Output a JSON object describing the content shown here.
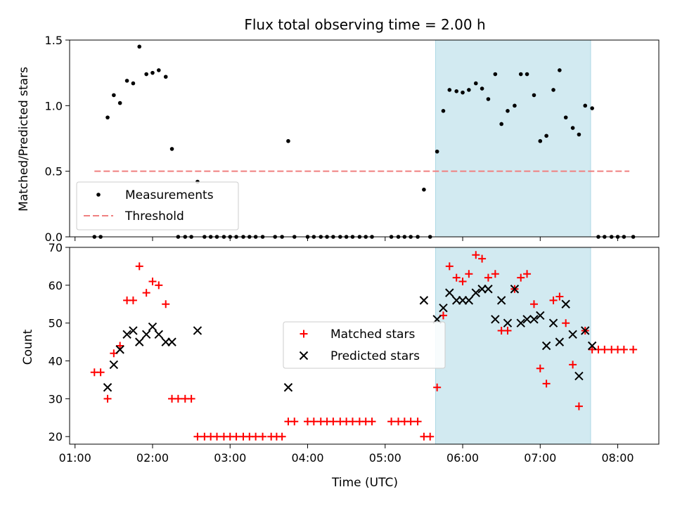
{
  "chart_data": [
    {
      "type": "scatter",
      "title": "Flux total observing time = 2.00 h",
      "ylabel": "Matched/Predicted stars",
      "xlabel": "",
      "xlim": [
        0.93,
        8.53
      ],
      "ylim": [
        0,
        1.5
      ],
      "yticks": [
        0.0,
        0.5,
        1.0,
        1.5
      ],
      "ytick_labels": [
        "0.0",
        "0.5",
        "1.0",
        "1.5"
      ],
      "shaded_region": [
        5.65,
        7.65
      ],
      "shade_color": "#add8e6",
      "threshold": {
        "name": "Threshold",
        "value": 0.5,
        "x_range": [
          1.25,
          8.15
        ],
        "color": "#f08080"
      },
      "legend": {
        "position": "lower-left",
        "entries": [
          "Measurements",
          "Threshold"
        ]
      },
      "series": [
        {
          "name": "Measurements",
          "marker": "dot",
          "color": "#000000",
          "points": [
            [
              1.25,
              0
            ],
            [
              1.33,
              0
            ],
            [
              1.42,
              0.91
            ],
            [
              1.5,
              1.08
            ],
            [
              1.58,
              1.02
            ],
            [
              1.67,
              1.19
            ],
            [
              1.75,
              1.17
            ],
            [
              1.83,
              1.45
            ],
            [
              1.92,
              1.24
            ],
            [
              2.0,
              1.25
            ],
            [
              2.08,
              1.27
            ],
            [
              2.17,
              1.22
            ],
            [
              2.25,
              0.67
            ],
            [
              2.33,
              0
            ],
            [
              2.42,
              0
            ],
            [
              2.5,
              0
            ],
            [
              2.58,
              0.42
            ],
            [
              2.67,
              0
            ],
            [
              2.75,
              0
            ],
            [
              2.83,
              0
            ],
            [
              2.92,
              0
            ],
            [
              3.0,
              0
            ],
            [
              3.08,
              0
            ],
            [
              3.17,
              0
            ],
            [
              3.25,
              0
            ],
            [
              3.33,
              0
            ],
            [
              3.42,
              0
            ],
            [
              3.58,
              0
            ],
            [
              3.67,
              0
            ],
            [
              3.75,
              0.73
            ],
            [
              3.83,
              0
            ],
            [
              4.0,
              0
            ],
            [
              4.08,
              0
            ],
            [
              4.17,
              0
            ],
            [
              4.25,
              0
            ],
            [
              4.33,
              0
            ],
            [
              4.42,
              0
            ],
            [
              4.5,
              0
            ],
            [
              4.58,
              0
            ],
            [
              4.67,
              0
            ],
            [
              4.75,
              0
            ],
            [
              4.83,
              0
            ],
            [
              5.08,
              0
            ],
            [
              5.17,
              0
            ],
            [
              5.25,
              0
            ],
            [
              5.33,
              0
            ],
            [
              5.42,
              0
            ],
            [
              5.5,
              0.36
            ],
            [
              5.58,
              0
            ],
            [
              5.67,
              0.65
            ],
            [
              5.75,
              0.96
            ],
            [
              5.83,
              1.12
            ],
            [
              5.92,
              1.11
            ],
            [
              6.0,
              1.1
            ],
            [
              6.08,
              1.12
            ],
            [
              6.17,
              1.17
            ],
            [
              6.25,
              1.13
            ],
            [
              6.33,
              1.05
            ],
            [
              6.42,
              1.24
            ],
            [
              6.5,
              0.86
            ],
            [
              6.58,
              0.96
            ],
            [
              6.67,
              1.0
            ],
            [
              6.75,
              1.24
            ],
            [
              6.83,
              1.24
            ],
            [
              6.92,
              1.08
            ],
            [
              7.0,
              0.73
            ],
            [
              7.08,
              0.77
            ],
            [
              7.17,
              1.12
            ],
            [
              7.25,
              1.27
            ],
            [
              7.33,
              0.91
            ],
            [
              7.42,
              0.83
            ],
            [
              7.5,
              0.78
            ],
            [
              7.58,
              1.0
            ],
            [
              7.67,
              0.98
            ],
            [
              7.75,
              0
            ],
            [
              7.83,
              0
            ],
            [
              7.92,
              0
            ],
            [
              8.0,
              0
            ],
            [
              8.08,
              0
            ],
            [
              8.2,
              0
            ]
          ]
        }
      ]
    },
    {
      "type": "scatter",
      "title": "",
      "ylabel": "Count",
      "xlabel": "Time (UTC)",
      "xlim": [
        0.93,
        8.53
      ],
      "ylim": [
        18,
        70
      ],
      "yticks": [
        20,
        30,
        40,
        50,
        60,
        70
      ],
      "ytick_labels": [
        "20",
        "30",
        "40",
        "50",
        "60",
        "70"
      ],
      "xticks": [
        1,
        2,
        3,
        4,
        5,
        6,
        7,
        8
      ],
      "xtick_labels": [
        "01:00",
        "02:00",
        "03:00",
        "04:00",
        "05:00",
        "06:00",
        "07:00",
        "08:00"
      ],
      "shaded_region": [
        5.65,
        7.65
      ],
      "shade_color": "#add8e6",
      "legend": {
        "position": "center",
        "entries": [
          "Matched stars",
          "Predicted stars"
        ]
      },
      "series": [
        {
          "name": "Matched stars",
          "marker": "plus",
          "color": "#ff0000",
          "points": [
            [
              1.25,
              37
            ],
            [
              1.33,
              37
            ],
            [
              1.42,
              30
            ],
            [
              1.5,
              42
            ],
            [
              1.58,
              44
            ],
            [
              1.67,
              56
            ],
            [
              1.75,
              56
            ],
            [
              1.83,
              65
            ],
            [
              1.92,
              58
            ],
            [
              2.0,
              61
            ],
            [
              2.08,
              60
            ],
            [
              2.17,
              55
            ],
            [
              2.25,
              30
            ],
            [
              2.33,
              30
            ],
            [
              2.42,
              30
            ],
            [
              2.5,
              30
            ],
            [
              2.58,
              20
            ],
            [
              2.67,
              20
            ],
            [
              2.75,
              20
            ],
            [
              2.83,
              20
            ],
            [
              2.92,
              20
            ],
            [
              3.0,
              20
            ],
            [
              3.08,
              20
            ],
            [
              3.17,
              20
            ],
            [
              3.25,
              20
            ],
            [
              3.33,
              20
            ],
            [
              3.42,
              20
            ],
            [
              3.53,
              20
            ],
            [
              3.6,
              20
            ],
            [
              3.67,
              20
            ],
            [
              3.75,
              24
            ],
            [
              3.83,
              24
            ],
            [
              4.0,
              24
            ],
            [
              4.08,
              24
            ],
            [
              4.17,
              24
            ],
            [
              4.25,
              24
            ],
            [
              4.33,
              24
            ],
            [
              4.42,
              24
            ],
            [
              4.5,
              24
            ],
            [
              4.58,
              24
            ],
            [
              4.67,
              24
            ],
            [
              4.75,
              24
            ],
            [
              4.83,
              24
            ],
            [
              5.08,
              24
            ],
            [
              5.17,
              24
            ],
            [
              5.25,
              24
            ],
            [
              5.33,
              24
            ],
            [
              5.42,
              24
            ],
            [
              5.5,
              20
            ],
            [
              5.58,
              20
            ],
            [
              5.67,
              33
            ],
            [
              5.75,
              52
            ],
            [
              5.83,
              65
            ],
            [
              5.92,
              62
            ],
            [
              6.0,
              61
            ],
            [
              6.08,
              63
            ],
            [
              6.17,
              68
            ],
            [
              6.25,
              67
            ],
            [
              6.33,
              62
            ],
            [
              6.42,
              63
            ],
            [
              6.5,
              48
            ],
            [
              6.58,
              48
            ],
            [
              6.67,
              59
            ],
            [
              6.75,
              62
            ],
            [
              6.83,
              63
            ],
            [
              6.92,
              55
            ],
            [
              7.0,
              38
            ],
            [
              7.08,
              34
            ],
            [
              7.17,
              56
            ],
            [
              7.25,
              57
            ],
            [
              7.33,
              50
            ],
            [
              7.42,
              39
            ],
            [
              7.5,
              28
            ],
            [
              7.58,
              48
            ],
            [
              7.67,
              43
            ],
            [
              7.75,
              43
            ],
            [
              7.83,
              43
            ],
            [
              7.92,
              43
            ],
            [
              8.0,
              43
            ],
            [
              8.08,
              43
            ],
            [
              8.2,
              43
            ]
          ]
        },
        {
          "name": "Predicted stars",
          "marker": "x",
          "color": "#000000",
          "points": [
            [
              1.42,
              33
            ],
            [
              1.5,
              39
            ],
            [
              1.58,
              43
            ],
            [
              1.67,
              47
            ],
            [
              1.75,
              48
            ],
            [
              1.83,
              45
            ],
            [
              1.92,
              47
            ],
            [
              2.0,
              49
            ],
            [
              2.08,
              47
            ],
            [
              2.17,
              45
            ],
            [
              2.25,
              45
            ],
            [
              2.58,
              48
            ],
            [
              3.75,
              33
            ],
            [
              5.5,
              56
            ],
            [
              5.67,
              51
            ],
            [
              5.75,
              54
            ],
            [
              5.83,
              58
            ],
            [
              5.92,
              56
            ],
            [
              6.0,
              56
            ],
            [
              6.08,
              56
            ],
            [
              6.17,
              58
            ],
            [
              6.25,
              59
            ],
            [
              6.33,
              59
            ],
            [
              6.42,
              51
            ],
            [
              6.5,
              56
            ],
            [
              6.58,
              50
            ],
            [
              6.67,
              59
            ],
            [
              6.75,
              50
            ],
            [
              6.83,
              51
            ],
            [
              6.92,
              51
            ],
            [
              7.0,
              52
            ],
            [
              7.08,
              44
            ],
            [
              7.17,
              50
            ],
            [
              7.25,
              45
            ],
            [
              7.33,
              55
            ],
            [
              7.42,
              47
            ],
            [
              7.5,
              36
            ],
            [
              7.58,
              48
            ],
            [
              7.67,
              44
            ]
          ]
        }
      ]
    }
  ]
}
